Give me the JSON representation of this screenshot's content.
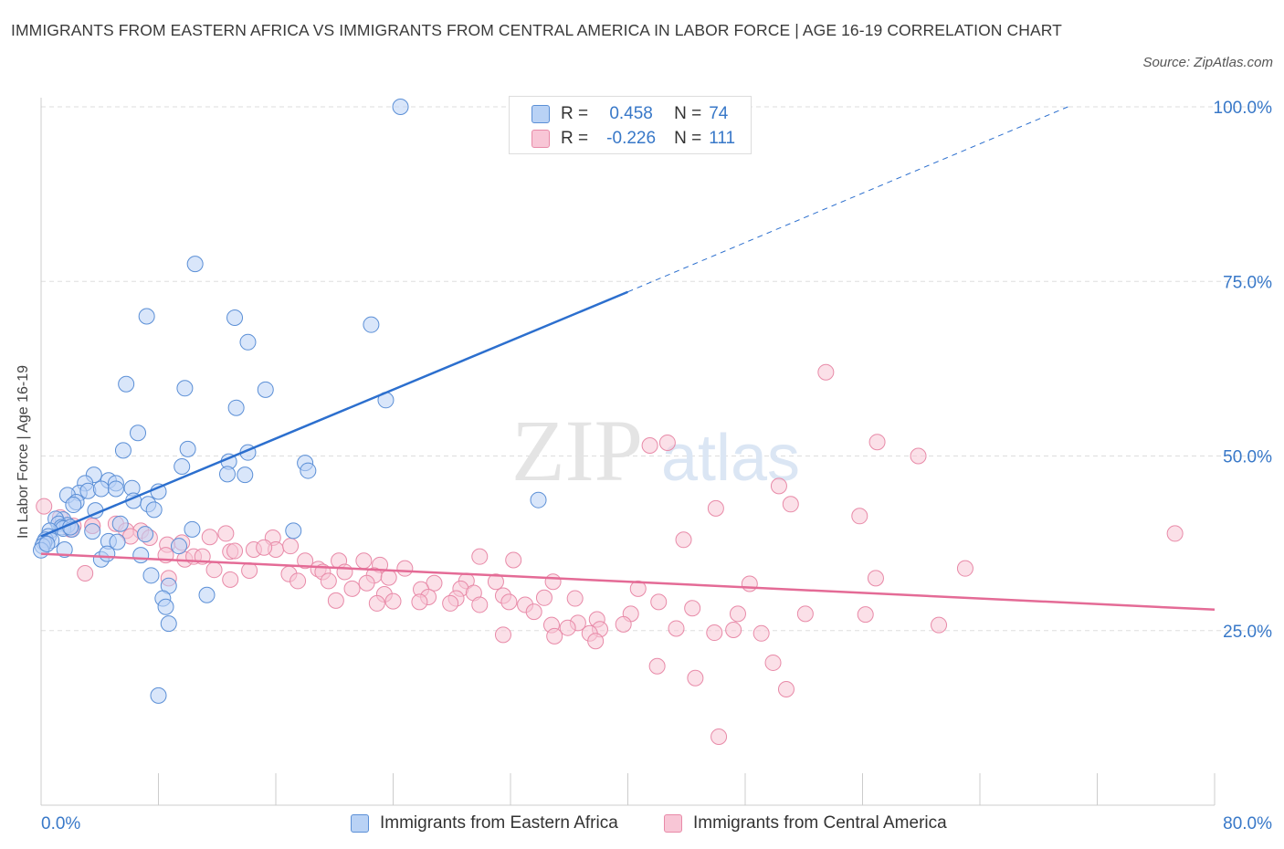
{
  "title": "IMMIGRANTS FROM EASTERN AFRICA VS IMMIGRANTS FROM CENTRAL AMERICA IN LABOR FORCE | AGE 16-19 CORRELATION CHART",
  "source": "Source: ZipAtlas.com",
  "watermark": {
    "zip": "ZIP",
    "atlas": "atlas"
  },
  "legend": {
    "r_label": "R =",
    "n_label": "N =",
    "rows": [
      {
        "r": "0.458",
        "n": "74"
      },
      {
        "r": "-0.226",
        "n": "111"
      }
    ]
  },
  "colors": {
    "blue_fill": "#b9d2f5",
    "blue_stroke": "#5b8fd6",
    "blue_line": "#2c6fce",
    "pink_fill": "#f8c6d6",
    "pink_stroke": "#e88aa8",
    "pink_line": "#e46b96",
    "axis_text": "#3878c8",
    "grid": "#dddddd"
  },
  "chart_data": {
    "type": "scatter",
    "title": "IMMIGRANTS FROM EASTERN AFRICA VS IMMIGRANTS FROM CENTRAL AMERICA IN LABOR FORCE | AGE 16-19 CORRELATION CHART",
    "xlabel": "",
    "ylabel": "In Labor Force | Age 16-19",
    "xlim": [
      0,
      80
    ],
    "ylim": [
      0,
      100
    ],
    "x_tick_labels": [
      "0.0%",
      "80.0%"
    ],
    "y_ticks": [
      25,
      50,
      75,
      100
    ],
    "y_tick_labels": [
      "25.0%",
      "50.0%",
      "75.0%",
      "100.0%"
    ],
    "grid": true,
    "legend_position": "top-center",
    "series": [
      {
        "name": "Immigrants from Eastern Africa",
        "r": 0.458,
        "n": 74,
        "trend": {
          "x0": 0,
          "y0": 38.5,
          "x1": 40,
          "y1": 73.5,
          "dashed_to_x": 70,
          "dashed_to_y": 100
        },
        "points": [
          [
            24.5,
            100
          ],
          [
            10.5,
            77.5
          ],
          [
            7.2,
            70
          ],
          [
            13.2,
            69.8
          ],
          [
            22.5,
            68.8
          ],
          [
            14.1,
            66.3
          ],
          [
            5.8,
            60.3
          ],
          [
            9.8,
            59.7
          ],
          [
            15.3,
            59.5
          ],
          [
            23.5,
            58
          ],
          [
            13.3,
            56.9
          ],
          [
            6.6,
            53.3
          ],
          [
            5.6,
            50.8
          ],
          [
            10.0,
            51.0
          ],
          [
            14.1,
            50.5
          ],
          [
            12.8,
            49.2
          ],
          [
            18.0,
            49.0
          ],
          [
            9.6,
            48.5
          ],
          [
            18.2,
            47.9
          ],
          [
            12.7,
            47.4
          ],
          [
            13.9,
            47.3
          ],
          [
            3.6,
            47.3
          ],
          [
            3.0,
            46.1
          ],
          [
            4.6,
            46.5
          ],
          [
            5.1,
            46.1
          ],
          [
            2.6,
            44.7
          ],
          [
            3.2,
            45.0
          ],
          [
            6.2,
            45.4
          ],
          [
            8.0,
            44.9
          ],
          [
            4.1,
            45.3
          ],
          [
            5.1,
            45.3
          ],
          [
            1.8,
            44.4
          ],
          [
            2.4,
            43.4
          ],
          [
            2.2,
            43.0
          ],
          [
            6.3,
            43.6
          ],
          [
            7.3,
            43.1
          ],
          [
            33.9,
            43.7
          ],
          [
            7.7,
            42.3
          ],
          [
            3.7,
            42.2
          ],
          [
            1.5,
            40.9
          ],
          [
            1.0,
            41.0
          ],
          [
            1.2,
            40.3
          ],
          [
            1.8,
            40.1
          ],
          [
            1.4,
            39.8
          ],
          [
            1.5,
            39.6
          ],
          [
            2.1,
            39.5
          ],
          [
            0.6,
            39.3
          ],
          [
            0.5,
            38.5
          ],
          [
            0.3,
            38.0
          ],
          [
            0.7,
            37.9
          ],
          [
            0.2,
            37.6
          ],
          [
            0.1,
            37.1
          ],
          [
            0.0,
            36.5
          ],
          [
            1.6,
            36.6
          ],
          [
            3.5,
            39.2
          ],
          [
            5.4,
            40.3
          ],
          [
            10.3,
            39.5
          ],
          [
            7.1,
            38.8
          ],
          [
            4.6,
            37.8
          ],
          [
            5.2,
            37.7
          ],
          [
            9.4,
            37.1
          ],
          [
            6.8,
            35.8
          ],
          [
            4.1,
            35.2
          ],
          [
            17.2,
            39.3
          ],
          [
            7.5,
            32.9
          ],
          [
            8.7,
            31.4
          ],
          [
            8.3,
            29.6
          ],
          [
            8.5,
            28.4
          ],
          [
            8.7,
            26.0
          ],
          [
            11.3,
            30.1
          ],
          [
            8.0,
            15.7
          ],
          [
            4.5,
            36.0
          ],
          [
            2.0,
            39.8
          ],
          [
            0.4,
            37.4
          ]
        ]
      },
      {
        "name": "Immigrants from Central America",
        "r": -0.226,
        "n": 111,
        "trend": {
          "x0": 0,
          "y0": 36.0,
          "x1": 80,
          "y1": 28.0
        },
        "points": [
          [
            53.5,
            62.0
          ],
          [
            57.0,
            52.0
          ],
          [
            41.5,
            51.5
          ],
          [
            42.7,
            51.9
          ],
          [
            59.8,
            50.0
          ],
          [
            50.3,
            45.7
          ],
          [
            51.1,
            43.1
          ],
          [
            46.0,
            42.5
          ],
          [
            55.8,
            41.4
          ],
          [
            0.2,
            42.8
          ],
          [
            1.3,
            41.2
          ],
          [
            2.2,
            40.0
          ],
          [
            3.5,
            40.0
          ],
          [
            2.0,
            39.5
          ],
          [
            5.1,
            40.3
          ],
          [
            5.8,
            39.3
          ],
          [
            6.8,
            39.3
          ],
          [
            7.4,
            38.3
          ],
          [
            6.1,
            38.5
          ],
          [
            12.6,
            38.9
          ],
          [
            11.5,
            38.4
          ],
          [
            15.8,
            38.3
          ],
          [
            8.6,
            37.3
          ],
          [
            9.6,
            37.6
          ],
          [
            16.0,
            36.6
          ],
          [
            14.5,
            36.6
          ],
          [
            12.9,
            36.3
          ],
          [
            15.2,
            36.9
          ],
          [
            17.0,
            37.1
          ],
          [
            13.2,
            36.4
          ],
          [
            9.8,
            35.2
          ],
          [
            10.4,
            35.6
          ],
          [
            11.0,
            35.6
          ],
          [
            8.5,
            35.8
          ],
          [
            43.8,
            38.0
          ],
          [
            77.3,
            38.9
          ],
          [
            29.9,
            35.6
          ],
          [
            32.2,
            35.1
          ],
          [
            20.3,
            35.0
          ],
          [
            22.0,
            35.0
          ],
          [
            18.0,
            35.0
          ],
          [
            23.1,
            34.4
          ],
          [
            11.8,
            33.7
          ],
          [
            14.2,
            33.6
          ],
          [
            18.9,
            33.8
          ],
          [
            19.2,
            33.4
          ],
          [
            20.7,
            33.4
          ],
          [
            24.8,
            33.9
          ],
          [
            63.0,
            33.9
          ],
          [
            16.9,
            33.1
          ],
          [
            22.7,
            32.9
          ],
          [
            12.9,
            32.3
          ],
          [
            19.6,
            32.1
          ],
          [
            17.5,
            32.1
          ],
          [
            8.7,
            32.5
          ],
          [
            22.2,
            31.8
          ],
          [
            23.7,
            32.6
          ],
          [
            26.8,
            31.8
          ],
          [
            29.0,
            32.1
          ],
          [
            31.0,
            32.0
          ],
          [
            34.9,
            32.0
          ],
          [
            56.9,
            32.5
          ],
          [
            48.3,
            31.7
          ],
          [
            28.6,
            31.0
          ],
          [
            25.9,
            30.9
          ],
          [
            29.5,
            30.4
          ],
          [
            40.7,
            31.0
          ],
          [
            21.2,
            31.0
          ],
          [
            31.5,
            30.0
          ],
          [
            3.0,
            33.2
          ],
          [
            23.4,
            30.2
          ],
          [
            26.4,
            29.8
          ],
          [
            28.3,
            29.6
          ],
          [
            34.3,
            29.7
          ],
          [
            36.4,
            29.6
          ],
          [
            24.0,
            29.2
          ],
          [
            25.8,
            29.1
          ],
          [
            31.9,
            29.1
          ],
          [
            20.1,
            29.3
          ],
          [
            22.9,
            28.9
          ],
          [
            27.9,
            28.9
          ],
          [
            29.9,
            28.7
          ],
          [
            33.0,
            28.7
          ],
          [
            42.1,
            29.1
          ],
          [
            44.4,
            28.2
          ],
          [
            33.6,
            27.7
          ],
          [
            40.2,
            27.4
          ],
          [
            52.1,
            27.4
          ],
          [
            56.2,
            27.3
          ],
          [
            47.5,
            27.4
          ],
          [
            37.9,
            26.6
          ],
          [
            36.6,
            26.1
          ],
          [
            34.8,
            25.8
          ],
          [
            35.9,
            25.4
          ],
          [
            39.7,
            25.9
          ],
          [
            38.1,
            25.2
          ],
          [
            61.2,
            25.8
          ],
          [
            37.4,
            24.6
          ],
          [
            43.3,
            25.3
          ],
          [
            45.9,
            24.7
          ],
          [
            49.1,
            24.6
          ],
          [
            47.2,
            25.1
          ],
          [
            35.0,
            24.2
          ],
          [
            31.5,
            24.4
          ],
          [
            37.8,
            23.5
          ],
          [
            49.9,
            20.4
          ],
          [
            42.0,
            19.9
          ],
          [
            44.6,
            18.2
          ],
          [
            50.8,
            16.6
          ],
          [
            46.2,
            9.8
          ],
          [
            3.5,
            40.0
          ]
        ]
      }
    ]
  }
}
